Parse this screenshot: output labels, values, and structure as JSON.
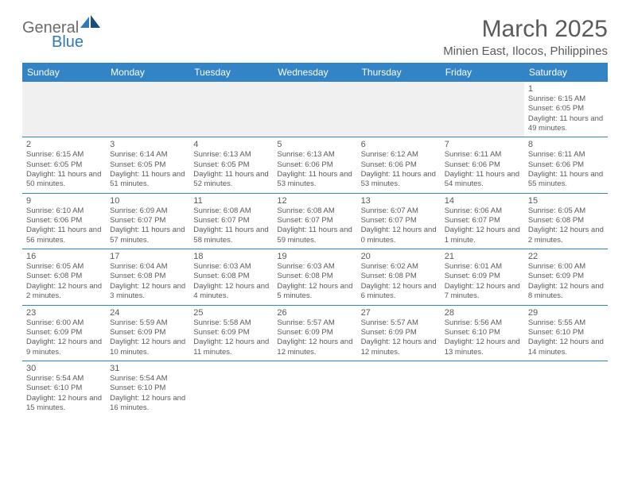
{
  "logo": {
    "part1": "General",
    "part2": "Blue"
  },
  "title": "March 2025",
  "location": "Minien East, Ilocos, Philippines",
  "dayHeaders": [
    "Sunday",
    "Monday",
    "Tuesday",
    "Wednesday",
    "Thursday",
    "Friday",
    "Saturday"
  ],
  "colors": {
    "headerBg": "#3384c6",
    "headerText": "#ffffff",
    "bodyText": "#5a5a5a",
    "emptyBg": "#f0f0f0",
    "logoGray": "#6b6b6b",
    "logoBlue": "#2f7ab9"
  },
  "weeks": [
    [
      {
        "empty": true
      },
      {
        "empty": true
      },
      {
        "empty": true
      },
      {
        "empty": true
      },
      {
        "empty": true
      },
      {
        "empty": true
      },
      {
        "num": "1",
        "sunrise": "6:15 AM",
        "sunset": "6:05 PM",
        "daylight": "11 hours and 49 minutes."
      }
    ],
    [
      {
        "num": "2",
        "sunrise": "6:15 AM",
        "sunset": "6:05 PM",
        "daylight": "11 hours and 50 minutes."
      },
      {
        "num": "3",
        "sunrise": "6:14 AM",
        "sunset": "6:05 PM",
        "daylight": "11 hours and 51 minutes."
      },
      {
        "num": "4",
        "sunrise": "6:13 AM",
        "sunset": "6:05 PM",
        "daylight": "11 hours and 52 minutes."
      },
      {
        "num": "5",
        "sunrise": "6:13 AM",
        "sunset": "6:06 PM",
        "daylight": "11 hours and 53 minutes."
      },
      {
        "num": "6",
        "sunrise": "6:12 AM",
        "sunset": "6:06 PM",
        "daylight": "11 hours and 53 minutes."
      },
      {
        "num": "7",
        "sunrise": "6:11 AM",
        "sunset": "6:06 PM",
        "daylight": "11 hours and 54 minutes."
      },
      {
        "num": "8",
        "sunrise": "6:11 AM",
        "sunset": "6:06 PM",
        "daylight": "11 hours and 55 minutes."
      }
    ],
    [
      {
        "num": "9",
        "sunrise": "6:10 AM",
        "sunset": "6:06 PM",
        "daylight": "11 hours and 56 minutes."
      },
      {
        "num": "10",
        "sunrise": "6:09 AM",
        "sunset": "6:07 PM",
        "daylight": "11 hours and 57 minutes."
      },
      {
        "num": "11",
        "sunrise": "6:08 AM",
        "sunset": "6:07 PM",
        "daylight": "11 hours and 58 minutes."
      },
      {
        "num": "12",
        "sunrise": "6:08 AM",
        "sunset": "6:07 PM",
        "daylight": "11 hours and 59 minutes."
      },
      {
        "num": "13",
        "sunrise": "6:07 AM",
        "sunset": "6:07 PM",
        "daylight": "12 hours and 0 minutes."
      },
      {
        "num": "14",
        "sunrise": "6:06 AM",
        "sunset": "6:07 PM",
        "daylight": "12 hours and 1 minute."
      },
      {
        "num": "15",
        "sunrise": "6:05 AM",
        "sunset": "6:08 PM",
        "daylight": "12 hours and 2 minutes."
      }
    ],
    [
      {
        "num": "16",
        "sunrise": "6:05 AM",
        "sunset": "6:08 PM",
        "daylight": "12 hours and 2 minutes."
      },
      {
        "num": "17",
        "sunrise": "6:04 AM",
        "sunset": "6:08 PM",
        "daylight": "12 hours and 3 minutes."
      },
      {
        "num": "18",
        "sunrise": "6:03 AM",
        "sunset": "6:08 PM",
        "daylight": "12 hours and 4 minutes."
      },
      {
        "num": "19",
        "sunrise": "6:03 AM",
        "sunset": "6:08 PM",
        "daylight": "12 hours and 5 minutes."
      },
      {
        "num": "20",
        "sunrise": "6:02 AM",
        "sunset": "6:08 PM",
        "daylight": "12 hours and 6 minutes."
      },
      {
        "num": "21",
        "sunrise": "6:01 AM",
        "sunset": "6:09 PM",
        "daylight": "12 hours and 7 minutes."
      },
      {
        "num": "22",
        "sunrise": "6:00 AM",
        "sunset": "6:09 PM",
        "daylight": "12 hours and 8 minutes."
      }
    ],
    [
      {
        "num": "23",
        "sunrise": "6:00 AM",
        "sunset": "6:09 PM",
        "daylight": "12 hours and 9 minutes."
      },
      {
        "num": "24",
        "sunrise": "5:59 AM",
        "sunset": "6:09 PM",
        "daylight": "12 hours and 10 minutes."
      },
      {
        "num": "25",
        "sunrise": "5:58 AM",
        "sunset": "6:09 PM",
        "daylight": "12 hours and 11 minutes."
      },
      {
        "num": "26",
        "sunrise": "5:57 AM",
        "sunset": "6:09 PM",
        "daylight": "12 hours and 12 minutes."
      },
      {
        "num": "27",
        "sunrise": "5:57 AM",
        "sunset": "6:09 PM",
        "daylight": "12 hours and 12 minutes."
      },
      {
        "num": "28",
        "sunrise": "5:56 AM",
        "sunset": "6:10 PM",
        "daylight": "12 hours and 13 minutes."
      },
      {
        "num": "29",
        "sunrise": "5:55 AM",
        "sunset": "6:10 PM",
        "daylight": "12 hours and 14 minutes."
      }
    ],
    [
      {
        "num": "30",
        "sunrise": "5:54 AM",
        "sunset": "6:10 PM",
        "daylight": "12 hours and 15 minutes."
      },
      {
        "num": "31",
        "sunrise": "5:54 AM",
        "sunset": "6:10 PM",
        "daylight": "12 hours and 16 minutes."
      },
      {
        "empty": true
      },
      {
        "empty": true
      },
      {
        "empty": true
      },
      {
        "empty": true
      },
      {
        "empty": true
      }
    ]
  ],
  "labels": {
    "sunrise": "Sunrise:",
    "sunset": "Sunset:",
    "daylight": "Daylight:"
  }
}
